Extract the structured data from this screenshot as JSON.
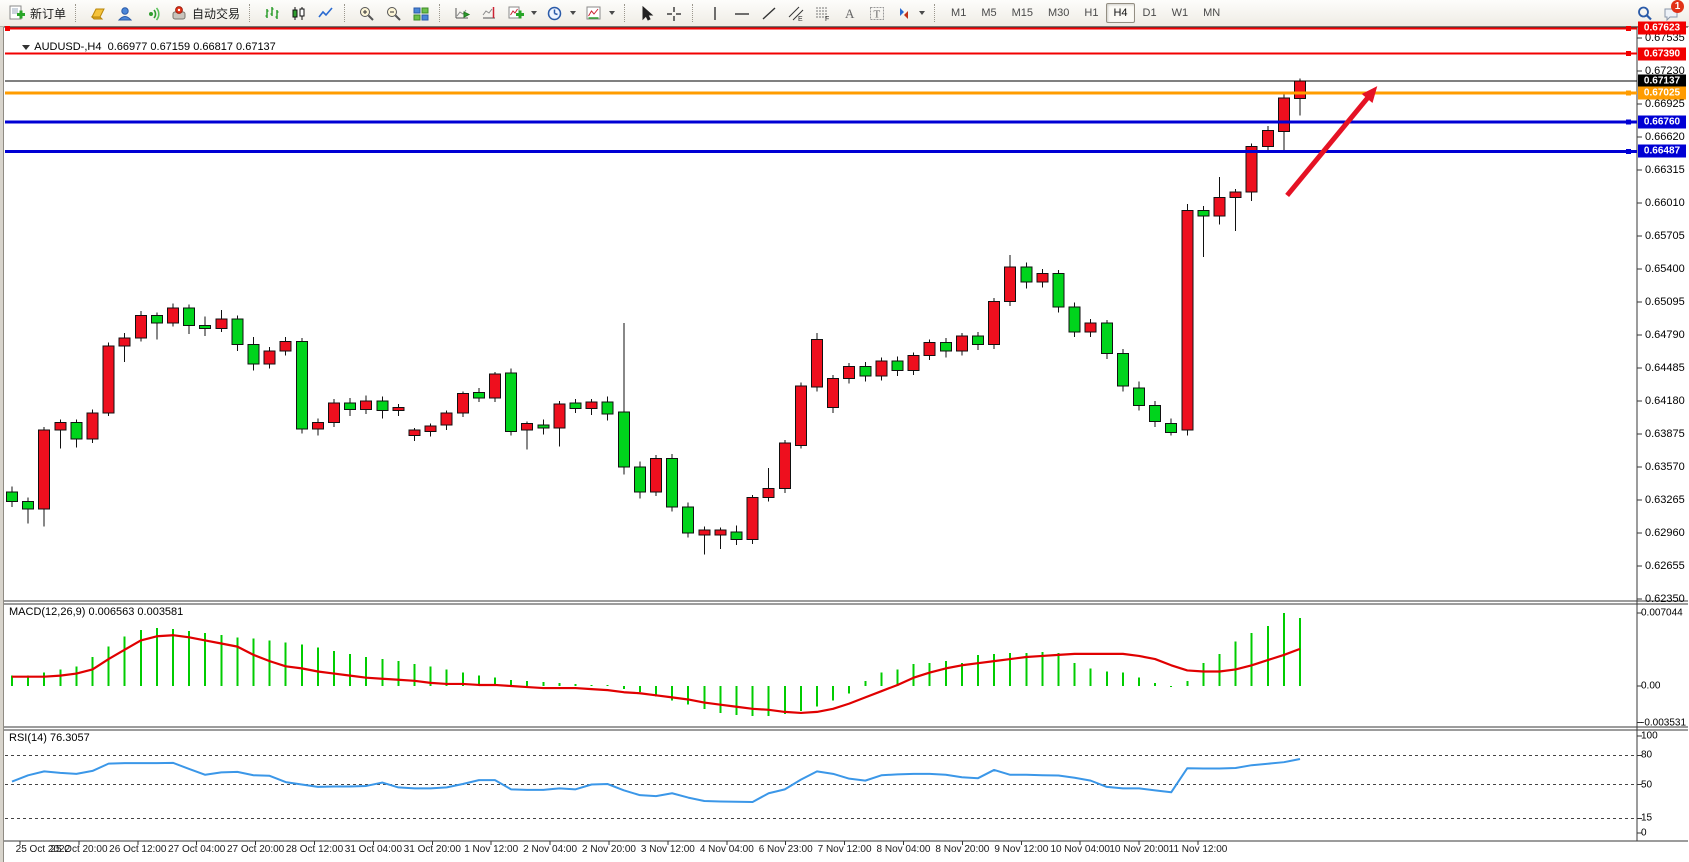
{
  "toolbar": {
    "items": [
      {
        "name": "new-order-button",
        "label": "新订单",
        "interactable": true
      },
      {
        "name": "separator"
      },
      {
        "name": "quotes-icon",
        "interactable": true
      },
      {
        "name": "community-icon",
        "interactable": true
      },
      {
        "name": "signals-icon",
        "interactable": true
      },
      {
        "name": "autotrading-button",
        "label": "自动交易",
        "interactable": true
      },
      {
        "name": "separator"
      },
      {
        "name": "bar-chart-icon",
        "interactable": true
      },
      {
        "name": "candlestick-chart-icon",
        "interactable": true
      },
      {
        "name": "line-chart-icon",
        "interactable": true
      },
      {
        "name": "separator"
      },
      {
        "name": "zoom-in-icon",
        "interactable": true
      },
      {
        "name": "zoom-out-icon",
        "interactable": true
      },
      {
        "name": "tile-windows-icon",
        "interactable": true
      },
      {
        "name": "separator"
      },
      {
        "name": "autoscroll-icon",
        "interactable": true
      },
      {
        "name": "shift-end-icon",
        "interactable": true
      },
      {
        "name": "indicators-button",
        "caret": true,
        "interactable": true
      },
      {
        "name": "periods-button",
        "caret": true,
        "interactable": true
      },
      {
        "name": "templates-button",
        "caret": true,
        "interactable": true
      },
      {
        "name": "separator"
      },
      {
        "name": "cursor-icon",
        "interactable": true
      },
      {
        "name": "crosshair-icon",
        "interactable": true
      },
      {
        "name": "separator"
      },
      {
        "name": "vertical-line-icon",
        "interactable": true
      },
      {
        "name": "horizontal-line-icon",
        "interactable": true
      },
      {
        "name": "trendline-icon",
        "interactable": true
      },
      {
        "name": "equidistant-channel-icon",
        "interactable": true
      },
      {
        "name": "fibonacci-icon",
        "interactable": true
      },
      {
        "name": "text-icon",
        "interactable": true
      },
      {
        "name": "text-label-icon",
        "interactable": true
      },
      {
        "name": "arrows-icon",
        "caret": true,
        "interactable": true
      },
      {
        "name": "separator"
      },
      {
        "name": "timeframes"
      },
      {
        "name": "spacer"
      },
      {
        "name": "search-icon",
        "interactable": true
      },
      {
        "name": "chat-icon",
        "badge": "1",
        "interactable": true
      }
    ],
    "timeframes": [
      "M1",
      "M5",
      "M15",
      "M30",
      "H1",
      "H4",
      "D1",
      "W1",
      "MN"
    ],
    "active_timeframe": "H4",
    "badge_count": "1"
  },
  "labels": {
    "chart_title": "AUDUSD-,H4  0.66977 0.67159 0.66817 0.67137",
    "macd": "MACD(12,26,9) 0.006563 0.003581",
    "rsi": "RSI(14) 76.3057"
  },
  "chart_data": {
    "type": "candlestick",
    "symbol": "AUDUSD-",
    "timeframe": "H4",
    "current_bar": {
      "open": 0.66977,
      "high": 0.67159,
      "low": 0.66817,
      "close": 0.67137
    },
    "price_range": {
      "top": 0.6765,
      "bottom": 0.6235
    },
    "price_axis_ticks": [
      "0.67535",
      "0.67230",
      "0.66925",
      "0.66620",
      "0.66315",
      "0.66010",
      "0.65705",
      "0.65400",
      "0.65095",
      "0.64790",
      "0.64485",
      "0.64180",
      "0.63875",
      "0.63570",
      "0.63265",
      "0.62960",
      "0.62655",
      "0.62350"
    ],
    "price_line_labels": [
      {
        "price": "0.67623",
        "value": 0.67623,
        "color": "#f20000",
        "width": 2,
        "kind": "resistance-line"
      },
      {
        "price": "0.67390",
        "value": 0.6739,
        "color": "#f20000",
        "width": 2,
        "kind": "resistance-line"
      },
      {
        "price": "0.67137",
        "value": 0.67137,
        "color": "#000000",
        "width": 1,
        "kind": "current-price-line"
      },
      {
        "price": "0.67025",
        "value": 0.67025,
        "color": "#ff9c00",
        "width": 3,
        "kind": "orange-level-line"
      },
      {
        "price": "0.66760",
        "value": 0.6676,
        "color": "#0000d4",
        "width": 3,
        "kind": "support-line"
      },
      {
        "price": "0.66487",
        "value": 0.66487,
        "color": "#0000d4",
        "width": 3,
        "kind": "support-line"
      }
    ],
    "time_labels": [
      "25 Oct 2022",
      "25 Oct 20:00",
      "26 Oct 12:00",
      "27 Oct 04:00",
      "27 Oct 20:00",
      "28 Oct 12:00",
      "31 Oct 04:00",
      "31 Oct 20:00",
      "1 Nov 12:00",
      "2 Nov 04:00",
      "2 Nov 20:00",
      "3 Nov 12:00",
      "4 Nov 04:00",
      "6 Nov 23:00",
      "7 Nov 12:00",
      "8 Nov 04:00",
      "8 Nov 20:00",
      "9 Nov 12:00",
      "10 Nov 04:00",
      "10 Nov 20:00",
      "11 Nov 12:00"
    ],
    "ohlc": [
      [
        0.6334,
        0.6339,
        0.632,
        0.6325
      ],
      [
        0.6325,
        0.6329,
        0.6305,
        0.6318
      ],
      [
        0.6318,
        0.6394,
        0.6302,
        0.6391
      ],
      [
        0.6391,
        0.6401,
        0.6374,
        0.6398
      ],
      [
        0.6398,
        0.6401,
        0.6375,
        0.6383
      ],
      [
        0.6383,
        0.641,
        0.6379,
        0.6407
      ],
      [
        0.6407,
        0.6472,
        0.6404,
        0.6469
      ],
      [
        0.6469,
        0.6481,
        0.6454,
        0.6476
      ],
      [
        0.6476,
        0.6501,
        0.6473,
        0.6497
      ],
      [
        0.6497,
        0.65,
        0.6475,
        0.649
      ],
      [
        0.649,
        0.6508,
        0.6487,
        0.6504
      ],
      [
        0.6504,
        0.6507,
        0.648,
        0.6488
      ],
      [
        0.6488,
        0.6496,
        0.6478,
        0.6485
      ],
      [
        0.6485,
        0.6502,
        0.6482,
        0.6494
      ],
      [
        0.6494,
        0.6497,
        0.6464,
        0.647
      ],
      [
        0.647,
        0.6477,
        0.6446,
        0.6452
      ],
      [
        0.6452,
        0.6468,
        0.6448,
        0.6464
      ],
      [
        0.6464,
        0.6477,
        0.646,
        0.6473
      ],
      [
        0.6473,
        0.6476,
        0.6388,
        0.6392
      ],
      [
        0.6392,
        0.6402,
        0.6386,
        0.6398
      ],
      [
        0.6398,
        0.642,
        0.6394,
        0.6416
      ],
      [
        0.6416,
        0.6421,
        0.6404,
        0.641
      ],
      [
        0.641,
        0.6423,
        0.6406,
        0.6418
      ],
      [
        0.6418,
        0.6422,
        0.6402,
        0.6409
      ],
      [
        0.6409,
        0.6415,
        0.6404,
        0.6412
      ],
      [
        0.6386,
        0.6393,
        0.6381,
        0.6391
      ],
      [
        0.639,
        0.6397,
        0.6385,
        0.6395
      ],
      [
        0.6396,
        0.6409,
        0.6391,
        0.6407
      ],
      [
        0.6407,
        0.6427,
        0.6403,
        0.6425
      ],
      [
        0.6426,
        0.643,
        0.6417,
        0.6421
      ],
      [
        0.6421,
        0.6445,
        0.6417,
        0.6443
      ],
      [
        0.6444,
        0.6448,
        0.6386,
        0.639
      ],
      [
        0.6391,
        0.6399,
        0.6373,
        0.6397
      ],
      [
        0.6396,
        0.6401,
        0.6387,
        0.6393
      ],
      [
        0.6393,
        0.6418,
        0.6376,
        0.6415
      ],
      [
        0.6416,
        0.642,
        0.6407,
        0.6411
      ],
      [
        0.6411,
        0.642,
        0.6405,
        0.6417
      ],
      [
        0.6417,
        0.6422,
        0.64,
        0.6406
      ],
      [
        0.6408,
        0.649,
        0.635,
        0.6357
      ],
      [
        0.6357,
        0.6362,
        0.6328,
        0.6334
      ],
      [
        0.6334,
        0.6368,
        0.633,
        0.6365
      ],
      [
        0.6365,
        0.6369,
        0.6316,
        0.632
      ],
      [
        0.632,
        0.6324,
        0.6292,
        0.6296
      ],
      [
        0.6294,
        0.6302,
        0.6276,
        0.6299
      ],
      [
        0.6294,
        0.6301,
        0.6281,
        0.6299
      ],
      [
        0.6297,
        0.6303,
        0.6285,
        0.629
      ],
      [
        0.629,
        0.6331,
        0.6286,
        0.6329
      ],
      [
        0.6329,
        0.6356,
        0.6325,
        0.6337
      ],
      [
        0.6337,
        0.6382,
        0.6333,
        0.6379
      ],
      [
        0.6377,
        0.6435,
        0.6374,
        0.6432
      ],
      [
        0.6431,
        0.6481,
        0.6427,
        0.6475
      ],
      [
        0.6412,
        0.6442,
        0.6407,
        0.6439
      ],
      [
        0.6439,
        0.6453,
        0.6434,
        0.645
      ],
      [
        0.645,
        0.6454,
        0.6436,
        0.6441
      ],
      [
        0.6441,
        0.6458,
        0.6437,
        0.6455
      ],
      [
        0.6455,
        0.6459,
        0.6441,
        0.6446
      ],
      [
        0.6446,
        0.6463,
        0.6442,
        0.646
      ],
      [
        0.646,
        0.6475,
        0.6456,
        0.6472
      ],
      [
        0.6472,
        0.6476,
        0.6458,
        0.6464
      ],
      [
        0.6464,
        0.6481,
        0.646,
        0.6478
      ],
      [
        0.6478,
        0.6482,
        0.6465,
        0.647
      ],
      [
        0.647,
        0.6513,
        0.6466,
        0.651
      ],
      [
        0.651,
        0.6553,
        0.6506,
        0.6542
      ],
      [
        0.6542,
        0.6546,
        0.6522,
        0.6528
      ],
      [
        0.6528,
        0.654,
        0.6523,
        0.6536
      ],
      [
        0.6536,
        0.6539,
        0.65,
        0.6505
      ],
      [
        0.6505,
        0.6509,
        0.6477,
        0.6482
      ],
      [
        0.6482,
        0.6494,
        0.6477,
        0.649
      ],
      [
        0.649,
        0.6493,
        0.6457,
        0.6462
      ],
      [
        0.6462,
        0.6466,
        0.6427,
        0.6432
      ],
      [
        0.643,
        0.6436,
        0.6409,
        0.6414
      ],
      [
        0.6414,
        0.6418,
        0.6394,
        0.6399
      ],
      [
        0.6397,
        0.6402,
        0.6386,
        0.6389
      ],
      [
        0.6391,
        0.66,
        0.6386,
        0.6594
      ],
      [
        0.6594,
        0.6598,
        0.6551,
        0.6589
      ],
      [
        0.6589,
        0.6625,
        0.6581,
        0.6606
      ],
      [
        0.6606,
        0.6614,
        0.6575,
        0.6611
      ],
      [
        0.6611,
        0.6656,
        0.6603,
        0.6653
      ],
      [
        0.6653,
        0.6672,
        0.6648,
        0.6668
      ],
      [
        0.6667,
        0.6702,
        0.6648,
        0.6698
      ],
      [
        0.66977,
        0.67159,
        0.66817,
        0.67137
      ]
    ],
    "macd": {
      "params": "12,26,9",
      "value": 0.006563,
      "signal_value": 0.003581,
      "axis_labels": [
        "0.007044",
        "0.00",
        "-0.003531"
      ],
      "axis_values": [
        0.007044,
        0,
        -0.003531
      ],
      "histogram": [
        0.001,
        0.001,
        0.0013,
        0.0016,
        0.0019,
        0.0028,
        0.0038,
        0.0048,
        0.0054,
        0.0056,
        0.0055,
        0.0053,
        0.0051,
        0.0049,
        0.0047,
        0.0046,
        0.0044,
        0.0042,
        0.004,
        0.0037,
        0.0034,
        0.0031,
        0.0028,
        0.0026,
        0.0024,
        0.0021,
        0.0019,
        0.0016,
        0.0013,
        0.001,
        0.0008,
        0.0006,
        0.0005,
        0.0004,
        0.0003,
        0.0002,
        0.0001,
        0.0001,
        -0.0003,
        -0.0006,
        -0.001,
        -0.0014,
        -0.0018,
        -0.0022,
        -0.0026,
        -0.0028,
        -0.0029,
        -0.0029,
        -0.0027,
        -0.0024,
        -0.002,
        -0.0014,
        -0.0007,
        0.0005,
        0.0013,
        0.0016,
        0.0021,
        0.0022,
        0.0024,
        0.0022,
        0.003,
        0.0031,
        0.0032,
        0.0032,
        0.0033,
        0.0032,
        0.0022,
        0.0017,
        0.0014,
        0.0013,
        0.0008,
        0.0003,
        -0.0001,
        0.0005,
        0.0022,
        0.0031,
        0.0043,
        0.0051,
        0.0058,
        0.007044,
        0.006563
      ],
      "signal": [
        0.0009,
        0.0009,
        0.0009,
        0.001,
        0.0012,
        0.0016,
        0.0026,
        0.0035,
        0.0044,
        0.0048,
        0.0049,
        0.0047,
        0.0044,
        0.0041,
        0.0038,
        0.003,
        0.0024,
        0.0019,
        0.0017,
        0.0014,
        0.0012,
        0.001,
        0.0008,
        0.0007,
        0.0006,
        0.0005,
        0.0003,
        0.0002,
        0.0002,
        0.0001,
        0.0001,
        0.0,
        -0.0001,
        -0.0002,
        -0.0002,
        -0.0002,
        -0.0003,
        -0.0004,
        -0.0006,
        -0.0007,
        -0.0009,
        -0.0011,
        -0.0013,
        -0.0016,
        -0.0018,
        -0.002,
        -0.0022,
        -0.0023,
        -0.0025,
        -0.0026,
        -0.0025,
        -0.0022,
        -0.0017,
        -0.0011,
        -0.0005,
        0.0001,
        0.0008,
        0.0013,
        0.0017,
        0.002,
        0.0022,
        0.0024,
        0.0026,
        0.0028,
        0.0029,
        0.003,
        0.0031,
        0.0031,
        0.0031,
        0.0031,
        0.0029,
        0.0026,
        0.002,
        0.0015,
        0.0014,
        0.0014,
        0.0016,
        0.002,
        0.0025,
        0.003,
        0.003581
      ]
    },
    "rsi": {
      "period": 14,
      "value": 76.3057,
      "axis_labels": [
        "100",
        "80",
        "50",
        "15",
        "0"
      ],
      "axis_values": [
        100,
        80,
        50,
        15,
        0
      ],
      "levels": [
        80,
        50,
        15
      ],
      "values": [
        53,
        59.5,
        63.5,
        62,
        61,
        64,
        71.5,
        72,
        72,
        72,
        72.3,
        66,
        60,
        62.5,
        63,
        59.5,
        59,
        52.5,
        50,
        47.5,
        48,
        48,
        48.5,
        52,
        47,
        46,
        46,
        47,
        50.5,
        54.5,
        54.5,
        45,
        44.5,
        44.5,
        46,
        45,
        50,
        50.5,
        44,
        39,
        38,
        41,
        36.5,
        33,
        32.5,
        32.2,
        32,
        41,
        45,
        55,
        63.5,
        61,
        56,
        54,
        59.5,
        60.5,
        61,
        61,
        60,
        57.5,
        56.5,
        65,
        60,
        60,
        59.5,
        59.3,
        57,
        54,
        47.5,
        46,
        46,
        44,
        42,
        66.8,
        66.5,
        66.5,
        67,
        69.9,
        71.4,
        73,
        76.3
      ]
    },
    "arrow_annotation": {
      "from_index": 79.2,
      "from_price": 0.6608,
      "to_index": 84.8,
      "to_price": 0.6709,
      "color": "#e51224"
    },
    "colors": {
      "bull_candle": "#ee0f1e",
      "bear_candle": "#00d41c",
      "candle_outline": "#111111",
      "macd_histogram": "#00cc00",
      "macd_signal": "#e00000",
      "rsi_line": "#3b97e8",
      "level_red": "#f20000",
      "level_orange": "#ff9c00",
      "level_blue": "#0000d4",
      "current_price_label_bg": "#000000"
    }
  }
}
